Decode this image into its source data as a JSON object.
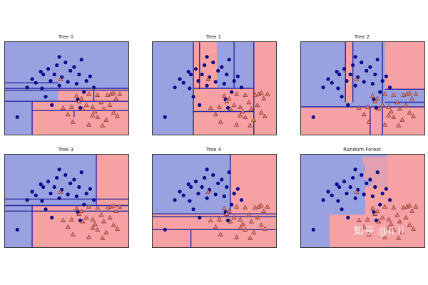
{
  "figure": {
    "watermark": "知乎 @li li"
  },
  "chart_data": [
    {
      "type": "scatter",
      "title": "Tree 0",
      "xlim": [
        0,
        10
      ],
      "ylim": [
        0,
        10
      ],
      "grid": false,
      "colors": {
        "class0_region": "#9aa1e0",
        "class1_region": "#f6a1a3",
        "boundary": "#2a2aa0",
        "class0": "#0a0a8c",
        "class1": "#e07a6c"
      },
      "regions": [
        {
          "class": 0,
          "x": [
            0,
            10
          ],
          "y": [
            0,
            10
          ]
        },
        {
          "class": 1,
          "x": [
            7.2,
            10
          ],
          "y": [
            0,
            4.9
          ]
        },
        {
          "class": 1,
          "x": [
            2.2,
            10
          ],
          "y": [
            0,
            3.6
          ]
        },
        {
          "class": 1,
          "x": [
            4.3,
            7.2
          ],
          "y": [
            3.6,
            4.9
          ]
        }
      ],
      "boundaries": [
        {
          "x": [
            0,
            10
          ],
          "y": [
            5.0,
            5.0
          ]
        },
        {
          "x": [
            0,
            10
          ],
          "y": [
            4.8,
            4.8
          ]
        },
        {
          "x": [
            0,
            10
          ],
          "y": [
            3.6,
            3.6
          ]
        },
        {
          "x": [
            2.2,
            10
          ],
          "y": [
            2.6,
            2.6
          ]
        },
        {
          "x": [
            2.2,
            2.2
          ],
          "y": [
            0,
            3.6
          ]
        },
        {
          "x": [
            7.2,
            7.2
          ],
          "y": [
            3.6,
            4.9
          ]
        },
        {
          "x": [
            5.6,
            5.6
          ],
          "y": [
            1.9,
            2.6
          ]
        },
        {
          "x": [
            0,
            4.3
          ],
          "y": [
            5.6,
            5.6
          ]
        }
      ]
    },
    {
      "type": "scatter",
      "title": "Tree 1",
      "xlim": [
        0,
        10
      ],
      "ylim": [
        0,
        10
      ],
      "grid": false,
      "colors": {
        "class0_region": "#9aa1e0",
        "class1_region": "#f6a1a3",
        "boundary": "#2a2aa0",
        "class0": "#0a0a8c",
        "class1": "#e07a6c"
      },
      "regions": [
        {
          "class": 0,
          "x": [
            0,
            10
          ],
          "y": [
            0,
            10
          ]
        },
        {
          "class": 1,
          "x": [
            8.2,
            10
          ],
          "y": [
            0,
            10
          ]
        },
        {
          "class": 1,
          "x": [
            3.3,
            8.2
          ],
          "y": [
            0,
            5.0
          ]
        },
        {
          "class": 1,
          "x": [
            3.3,
            5.2
          ],
          "y": [
            5.0,
            10
          ]
        }
      ],
      "boundaries": [
        {
          "x": [
            3.3,
            3.3
          ],
          "y": [
            0,
            10
          ]
        },
        {
          "x": [
            3.8,
            3.8
          ],
          "y": [
            4.9,
            10
          ]
        },
        {
          "x": [
            6.6,
            6.6
          ],
          "y": [
            5.0,
            10
          ]
        },
        {
          "x": [
            8.2,
            8.2
          ],
          "y": [
            0,
            10
          ]
        },
        {
          "x": [
            3.3,
            8.2
          ],
          "y": [
            5.0,
            5.0
          ]
        },
        {
          "x": [
            3.3,
            8.2
          ],
          "y": [
            2.5,
            2.5
          ]
        }
      ]
    },
    {
      "type": "scatter",
      "title": "Tree 2",
      "xlim": [
        0,
        10
      ],
      "ylim": [
        0,
        10
      ],
      "grid": false,
      "colors": {
        "class0_region": "#9aa1e0",
        "class1_region": "#f6a1a3",
        "boundary": "#2a2aa0",
        "class0": "#0a0a8c",
        "class1": "#e07a6c"
      },
      "regions": [
        {
          "class": 0,
          "x": [
            0,
            10
          ],
          "y": [
            0,
            10
          ]
        },
        {
          "class": 1,
          "x": [
            6.6,
            10
          ],
          "y": [
            0,
            3.1
          ]
        },
        {
          "class": 1,
          "x": [
            0,
            6.6
          ],
          "y": [
            0,
            3.0
          ]
        },
        {
          "class": 1,
          "x": [
            6.8,
            10
          ],
          "y": [
            4.8,
            10
          ]
        },
        {
          "class": 1,
          "x": [
            3.6,
            4.2
          ],
          "y": [
            3.5,
            10
          ]
        }
      ],
      "boundaries": [
        {
          "x": [
            0,
            10
          ],
          "y": [
            3.0,
            3.0
          ]
        },
        {
          "x": [
            6.8,
            10
          ],
          "y": [
            4.9,
            4.9
          ]
        },
        {
          "x": [
            6.8,
            10
          ],
          "y": [
            3.5,
            3.5
          ]
        },
        {
          "x": [
            6.6,
            6.6
          ],
          "y": [
            0,
            10
          ]
        },
        {
          "x": [
            3.6,
            3.6
          ],
          "y": [
            3.5,
            10
          ]
        },
        {
          "x": [
            4.2,
            4.2
          ],
          "y": [
            3.5,
            10
          ]
        },
        {
          "x": [
            5.6,
            5.6
          ],
          "y": [
            0,
            3.0
          ]
        }
      ]
    },
    {
      "type": "scatter",
      "title": "Tree 3",
      "xlim": [
        0,
        10
      ],
      "ylim": [
        0,
        10
      ],
      "grid": false,
      "colors": {
        "class0_region": "#9aa1e0",
        "class1_region": "#f6a1a3",
        "boundary": "#2a2aa0",
        "class0": "#0a0a8c",
        "class1": "#e07a6c"
      },
      "regions": [
        {
          "class": 0,
          "x": [
            0,
            10
          ],
          "y": [
            0,
            10
          ]
        },
        {
          "class": 1,
          "x": [
            2.2,
            10
          ],
          "y": [
            0,
            4.5
          ]
        },
        {
          "class": 1,
          "x": [
            7.4,
            10
          ],
          "y": [
            4.5,
            10
          ]
        }
      ],
      "boundaries": [
        {
          "x": [
            0,
            10
          ],
          "y": [
            5.2,
            5.2
          ]
        },
        {
          "x": [
            0,
            10
          ],
          "y": [
            4.5,
            4.5
          ]
        },
        {
          "x": [
            0,
            10
          ],
          "y": [
            3.9,
            3.9
          ]
        },
        {
          "x": [
            2.2,
            2.2
          ],
          "y": [
            0,
            4.5
          ]
        },
        {
          "x": [
            7.4,
            7.4
          ],
          "y": [
            4.5,
            10
          ]
        }
      ]
    },
    {
      "type": "scatter",
      "title": "Tree 4",
      "xlim": [
        0,
        10
      ],
      "ylim": [
        0,
        10
      ],
      "grid": false,
      "colors": {
        "class0_region": "#9aa1e0",
        "class1_region": "#f6a1a3",
        "boundary": "#2a2aa0",
        "class0": "#0a0a8c",
        "class1": "#e07a6c"
      },
      "regions": [
        {
          "class": 0,
          "x": [
            0,
            10
          ],
          "y": [
            0,
            10
          ]
        },
        {
          "class": 1,
          "x": [
            0,
            10
          ],
          "y": [
            0,
            3.6
          ]
        },
        {
          "class": 1,
          "x": [
            6.3,
            10
          ],
          "y": [
            3.6,
            10
          ]
        }
      ],
      "boundaries": [
        {
          "x": [
            0,
            10
          ],
          "y": [
            3.6,
            3.6
          ]
        },
        {
          "x": [
            0,
            10
          ],
          "y": [
            3.3,
            3.3
          ]
        },
        {
          "x": [
            0,
            10
          ],
          "y": [
            1.9,
            1.9
          ]
        },
        {
          "x": [
            6.3,
            6.3
          ],
          "y": [
            3.6,
            10
          ]
        },
        {
          "x": [
            3.1,
            3.1
          ],
          "y": [
            0,
            1.9
          ]
        }
      ]
    },
    {
      "type": "scatter",
      "title": "Random Forest",
      "xlim": [
        0,
        10
      ],
      "ylim": [
        0,
        10
      ],
      "grid": false,
      "colors": {
        "class0_region": "#9aa1e0",
        "class1_region": "#f6a1a3",
        "boundary": "#2a2aa0",
        "class0": "#0a0a8c",
        "class1": "#e07a6c"
      },
      "regions": [
        {
          "class": 0,
          "x": [
            0,
            10
          ],
          "y": [
            0,
            10
          ]
        },
        {
          "class": 1,
          "x": [
            7.0,
            10
          ],
          "y": [
            0,
            10
          ]
        },
        {
          "class": 1,
          "x": [
            2.3,
            7.0
          ],
          "y": [
            0,
            3.5
          ]
        },
        {
          "class": 1,
          "x": [
            5.2,
            7.0
          ],
          "y": [
            3.5,
            6.5
          ]
        }
      ],
      "boundaries": []
    }
  ],
  "points": {
    "class0": [
      [
        1.0,
        1.9
      ],
      [
        1.8,
        5.1
      ],
      [
        2.2,
        6.0
      ],
      [
        2.5,
        5.6
      ],
      [
        2.9,
        6.8
      ],
      [
        3.0,
        5.0
      ],
      [
        3.1,
        6.5
      ],
      [
        3.5,
        7.1
      ],
      [
        3.7,
        5.8
      ],
      [
        4.0,
        6.5
      ],
      [
        4.2,
        7.5
      ],
      [
        4.4,
        8.4
      ],
      [
        4.6,
        6.2
      ],
      [
        4.9,
        7.8
      ],
      [
        5.1,
        5.7
      ],
      [
        5.3,
        6.9
      ],
      [
        5.6,
        7.3
      ],
      [
        5.8,
        5.5
      ],
      [
        6.0,
        6.5
      ],
      [
        6.2,
        8.1
      ],
      [
        6.4,
        4.6
      ],
      [
        6.6,
        5.8
      ],
      [
        6.9,
        6.3
      ],
      [
        7.2,
        5.1
      ],
      [
        4.4,
        5.3
      ],
      [
        3.3,
        4.1
      ],
      [
        5.9,
        3.8
      ],
      [
        6.1,
        2.9
      ],
      [
        3.8,
        3.2
      ]
    ],
    "class1": [
      [
        4.5,
        6.0
      ],
      [
        5.8,
        4.2
      ],
      [
        6.0,
        3.6
      ],
      [
        6.3,
        2.8
      ],
      [
        6.6,
        3.2
      ],
      [
        6.8,
        4.4
      ],
      [
        7.1,
        3.0
      ],
      [
        7.3,
        2.5
      ],
      [
        7.5,
        1.9
      ],
      [
        7.8,
        3.5
      ],
      [
        8.0,
        2.8
      ],
      [
        8.2,
        1.6
      ],
      [
        8.5,
        3.2
      ],
      [
        8.8,
        2.4
      ],
      [
        9.0,
        3.9
      ],
      [
        8.6,
        4.4
      ],
      [
        7.5,
        4.3
      ],
      [
        9.3,
        4.4
      ],
      [
        5.1,
        2.2
      ],
      [
        5.5,
        1.4
      ],
      [
        6.8,
        1.1
      ],
      [
        4.7,
        2.9
      ],
      [
        7.9,
        1.0
      ],
      [
        8.8,
        4.5
      ],
      [
        6.2,
        3.9
      ],
      [
        5.4,
        3.0
      ],
      [
        7.1,
        2.1
      ],
      [
        9.1,
        2.0
      ],
      [
        8.3,
        4.3
      ]
    ]
  }
}
